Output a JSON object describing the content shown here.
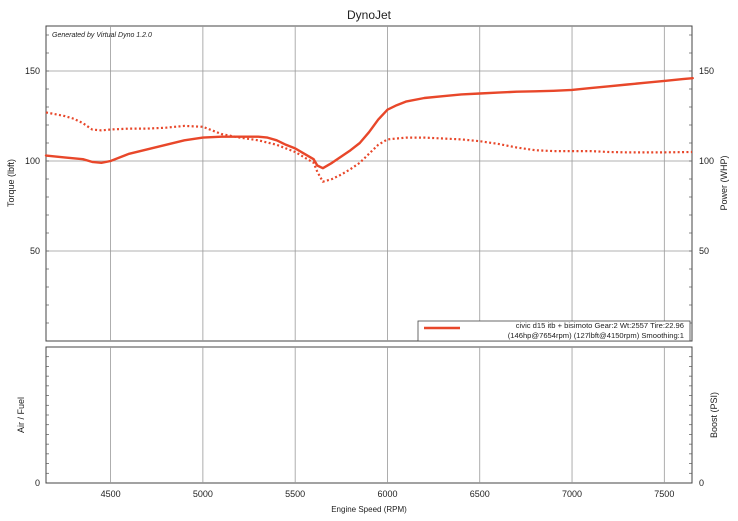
{
  "chart_data": [
    {
      "type": "line",
      "title": "DynoJet",
      "watermark": "Generated by Virtual Dyno 1.2.0",
      "xlabel": "Engine Speed (RPM)",
      "ylabel_left": "Torque (lbft)",
      "ylabel_right": "Power (WHP)",
      "xlim": [
        4150,
        7650
      ],
      "ylim": [
        0,
        175
      ],
      "xticks": [
        4500,
        5000,
        5500,
        6000,
        6500,
        7000,
        7500
      ],
      "yticks_left": [
        50,
        100,
        150
      ],
      "yticks_right": [
        50,
        100,
        150
      ],
      "grid": true,
      "color": "#e8472a",
      "legend_position": "bottom-right",
      "legend": {
        "line1": "civic d15 itb + bisimoto  Gear:2 Wt:2557 Tire:22.96",
        "line2": "(146hp@7654rpm) (127lbft@4150rpm) Smoothing:1"
      },
      "series": [
        {
          "name": "power",
          "style": "solid",
          "x": [
            4150,
            4250,
            4350,
            4400,
            4450,
            4500,
            4550,
            4600,
            4700,
            4800,
            4900,
            5000,
            5100,
            5200,
            5300,
            5350,
            5400,
            5450,
            5500,
            5550,
            5600,
            5620,
            5650,
            5700,
            5750,
            5800,
            5850,
            5900,
            5950,
            6000,
            6050,
            6100,
            6200,
            6300,
            6400,
            6500,
            6600,
            6700,
            6800,
            6900,
            7000,
            7100,
            7200,
            7300,
            7400,
            7500,
            7600,
            7654
          ],
          "y": [
            103,
            102,
            101,
            99.5,
            99,
            100,
            102,
            104,
            106.5,
            109,
            111.5,
            113,
            113.5,
            113.5,
            113.5,
            113,
            111.5,
            109,
            107,
            104,
            101,
            97.5,
            96,
            99,
            102.5,
            106,
            110,
            116,
            123,
            128.5,
            131,
            133,
            135,
            136,
            137,
            137.5,
            138,
            138.5,
            138.7,
            139,
            139.5,
            140.5,
            141.5,
            142.5,
            143.5,
            144.5,
            145.5,
            146
          ]
        },
        {
          "name": "torque",
          "style": "dotted",
          "x": [
            4150,
            4200,
            4250,
            4300,
            4350,
            4400,
            4450,
            4500,
            4600,
            4700,
            4800,
            4900,
            5000,
            5050,
            5100,
            5200,
            5300,
            5400,
            5500,
            5550,
            5600,
            5620,
            5650,
            5700,
            5750,
            5800,
            5850,
            5900,
            5950,
            6000,
            6100,
            6200,
            6300,
            6400,
            6500,
            6600,
            6700,
            6800,
            6900,
            7000,
            7100,
            7200,
            7300,
            7400,
            7500,
            7650
          ],
          "y": [
            127,
            126,
            125,
            123.5,
            121,
            117.5,
            117,
            117.5,
            118,
            118,
            118.5,
            119.5,
            119,
            117,
            115,
            113,
            111.5,
            109,
            105,
            102,
            99,
            94,
            88.5,
            90,
            92.5,
            95.5,
            99,
            104,
            109,
            112,
            113,
            113,
            112.5,
            112,
            111,
            109.5,
            107.5,
            106,
            105.5,
            105.5,
            105.5,
            105,
            104.8,
            104.8,
            104.8,
            105
          ]
        }
      ]
    },
    {
      "type": "line",
      "ylabel_left": "Air / Fuel",
      "ylabel_right": "Boost (PSI)",
      "xlim": [
        4150,
        7650
      ],
      "xticks": [
        4500,
        5000,
        5500,
        6000,
        6500,
        7000,
        7500
      ],
      "y_min_label_left": "0",
      "y_min_label_right": "0",
      "grid": true,
      "series": []
    }
  ]
}
